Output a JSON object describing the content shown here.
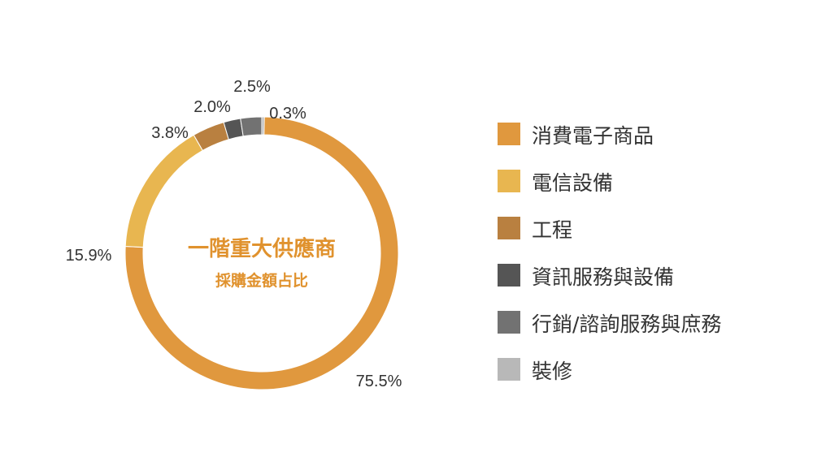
{
  "chart_data": {
    "type": "pie",
    "title": "一階重大供應商",
    "subtitle": "採購金額占比",
    "categories": [
      "消費電子商品",
      "電信設備",
      "工程",
      "資訊服務與設備",
      "行銷/諮詢服務與庶務",
      "裝修"
    ],
    "values": [
      75.5,
      15.9,
      3.8,
      2.0,
      2.5,
      0.3
    ],
    "value_labels": [
      "75.5%",
      "15.9%",
      "3.8%",
      "2.0%",
      "2.5%",
      "0.3%"
    ],
    "colors": [
      "#e0983e",
      "#e8b650",
      "#b98040",
      "#555555",
      "#727272",
      "#b8b8b8"
    ],
    "legend_position": "right",
    "donut": true
  }
}
